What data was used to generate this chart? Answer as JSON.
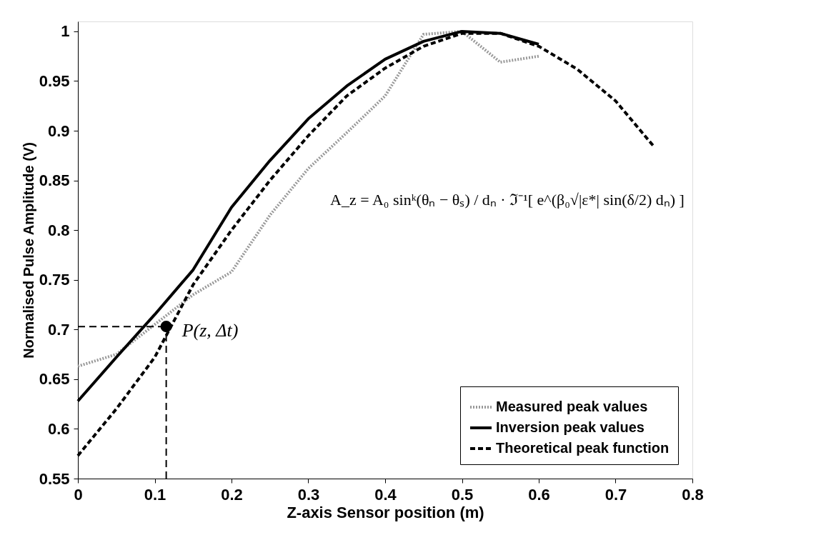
{
  "chart_data": {
    "type": "line",
    "xlabel": "Z-axis Sensor position (m)",
    "ylabel": "Normalised Pulse Amplitude (V)",
    "xlim": [
      0,
      0.8
    ],
    "xticks": [
      0,
      0.1,
      0.2,
      0.3,
      0.4,
      0.5,
      0.6,
      0.7,
      0.8
    ],
    "ylim": [
      0.55,
      1.01
    ],
    "yticks": [
      0.55,
      0.6,
      0.65,
      0.7,
      0.75,
      0.8,
      0.85,
      0.9,
      0.95,
      1
    ],
    "grid": false,
    "legend": "bottom right",
    "series": [
      {
        "name": "Measured peak values",
        "color": "#999999",
        "line_style": "dotted",
        "x": [
          0,
          0.05,
          0.1,
          0.15,
          0.2,
          0.25,
          0.3,
          0.35,
          0.4,
          0.45,
          0.5,
          0.55,
          0.6
        ],
        "values": [
          0.663,
          0.675,
          0.705,
          0.735,
          0.758,
          0.815,
          0.862,
          0.898,
          0.935,
          0.997,
          1.0,
          0.969,
          0.975
        ]
      },
      {
        "name": "Inversion peak values",
        "color": "#000000",
        "line_style": "solid",
        "x": [
          0,
          0.05,
          0.1,
          0.15,
          0.2,
          0.25,
          0.3,
          0.35,
          0.4,
          0.45,
          0.5,
          0.55,
          0.6
        ],
        "values": [
          0.628,
          0.672,
          0.715,
          0.76,
          0.823,
          0.87,
          0.912,
          0.945,
          0.972,
          0.99,
          1.0,
          0.998,
          0.987
        ]
      },
      {
        "name": "Theoretical peak function",
        "color": "#000000",
        "line_style": "dashed",
        "x": [
          0,
          0.05,
          0.1,
          0.15,
          0.2,
          0.25,
          0.3,
          0.35,
          0.4,
          0.45,
          0.5,
          0.55,
          0.6,
          0.65,
          0.7,
          0.75
        ],
        "values": [
          0.573,
          0.62,
          0.672,
          0.745,
          0.8,
          0.85,
          0.895,
          0.935,
          0.963,
          0.985,
          0.998,
          0.998,
          0.985,
          0.962,
          0.93,
          0.884
        ]
      },
      {
        "type": "scatter",
        "color": "#000000",
        "marker": "circle",
        "x": [
          0.115
        ],
        "values": [
          0.703
        ]
      }
    ],
    "annotations": [
      {
        "text": "P(z, Δt)",
        "x": 0.115,
        "y": 0.703
      },
      "A_z = A₀ sinᵏ(θₙ − θₛ) / dₙ · ℑ⁻¹[ e^(β₀√|ε*| sin(δ/2) dₙ) ]"
    ]
  }
}
